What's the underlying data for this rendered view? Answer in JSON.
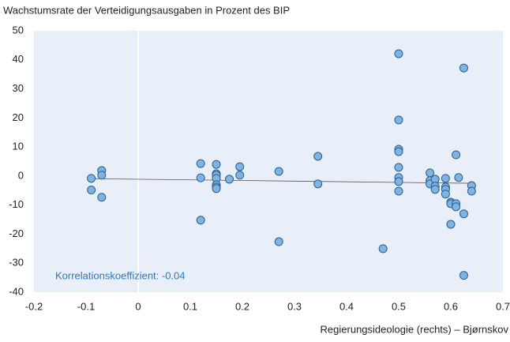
{
  "chart_data": {
    "type": "scatter",
    "title": "Wachstumsrate der Verteidigungsausgaben in Prozent des BIP",
    "x_label": "Regierungsideologie (rechts) – Bjørnskov",
    "annotation": "Korrelationskoeffizient: -0.04",
    "color": "#7fb3e2",
    "x": [
      -0.09,
      -0.09,
      -0.07,
      -0.07,
      -0.07,
      0.12,
      0.12,
      0.12,
      0.15,
      0.15,
      0.15,
      0.15,
      0.15,
      0.15,
      0.15,
      0.175,
      0.195,
      0.195,
      0.27,
      0.27,
      0.345,
      0.345,
      0.47,
      0.5,
      0.5,
      0.5,
      0.5,
      0.5,
      0.5,
      0.5,
      0.5,
      0.56,
      0.56,
      0.56,
      0.57,
      0.57,
      0.57,
      0.59,
      0.59,
      0.59,
      0.59,
      0.6,
      0.6,
      0.6,
      0.61,
      0.61,
      0.61,
      0.615,
      0.625,
      0.625,
      0.625,
      0.64,
      0.64
    ],
    "y": [
      -0.8,
      -4.8,
      1.9,
      0.3,
      -7.3,
      4.3,
      -0.6,
      -15.2,
      4,
      0.8,
      0.3,
      -0.8,
      -3,
      -3.8,
      -4.3,
      -1.1,
      3.2,
      0.3,
      1.6,
      -22.6,
      6.8,
      -2.7,
      -25,
      42.1,
      19.3,
      9.2,
      8.4,
      3,
      -0.5,
      -1.9,
      -5.2,
      1.1,
      -1.6,
      -2.7,
      -1.1,
      -3.5,
      -4.6,
      -0.8,
      -3.8,
      -4.6,
      -6.2,
      -9,
      -16.6,
      -9.5,
      7.3,
      -9.5,
      -10.6,
      -0.5,
      37.2,
      -13,
      -34.2,
      -3.3,
      -5.2
    ],
    "trendline": {
      "x": [
        -0.09,
        0.64
      ],
      "y": [
        -0.9,
        -2.5
      ]
    },
    "xlim": [
      -0.2,
      0.7
    ],
    "xticks": [
      -0.2,
      -0.1,
      0,
      0.1,
      0.2,
      0.3,
      0.4,
      0.5,
      0.6,
      0.7
    ],
    "ylim": [
      -40,
      50
    ],
    "yticks": [
      -40,
      -30,
      -20,
      -10,
      0,
      10,
      20,
      30,
      40,
      50
    ]
  }
}
